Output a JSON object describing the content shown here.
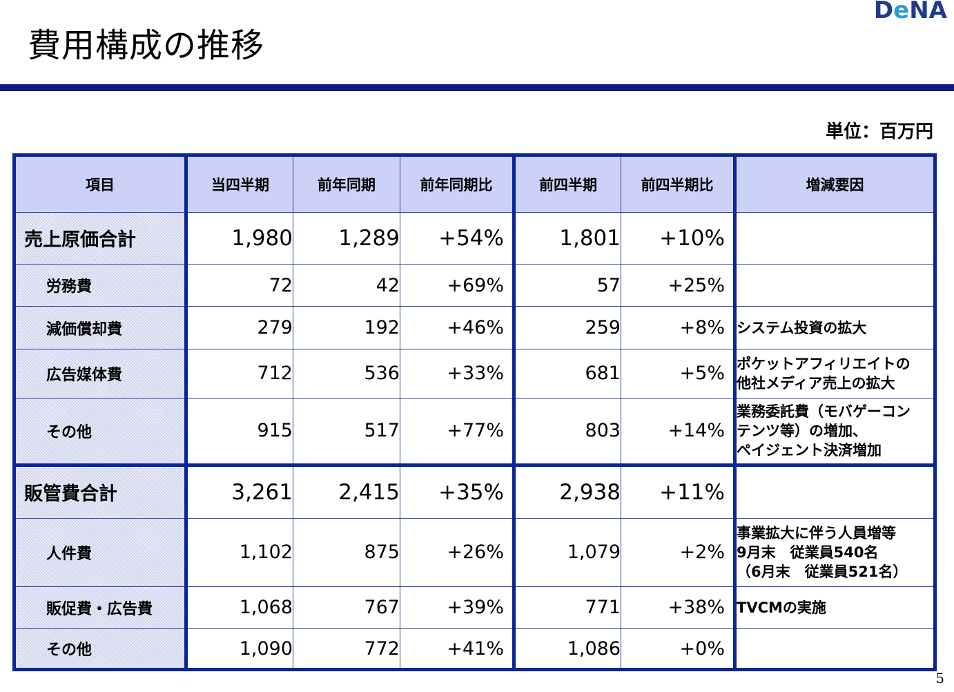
{
  "logo": {
    "part1": "D",
    "part2": "e",
    "part3": "NA"
  },
  "title": "費用構成の推移",
  "unit": "単位：百万円",
  "page_number": "5",
  "columns": [
    "項目",
    "当四半期",
    "前年同期",
    "前年同期比",
    "前四半期",
    "前四半期比",
    "増減要因"
  ],
  "rows": [
    {
      "label": "売上原価合計",
      "current": "1,980",
      "prev_year": "1,289",
      "yoy": "+54%",
      "prev_q": "1,801",
      "qoq": "+10%",
      "reason": [
        "",
        "",
        ""
      ]
    },
    {
      "label": "労務費",
      "current": "72",
      "prev_year": "42",
      "yoy": "+69%",
      "prev_q": "57",
      "qoq": "+25%",
      "reason": [
        "",
        "",
        ""
      ]
    },
    {
      "label": "減価償却費",
      "current": "279",
      "prev_year": "192",
      "yoy": "+46%",
      "prev_q": "259",
      "qoq": "+8%",
      "reason": [
        "システム投資の拡大",
        "",
        ""
      ]
    },
    {
      "label": "広告媒体費",
      "current": "712",
      "prev_year": "536",
      "yoy": "+33%",
      "prev_q": "681",
      "qoq": "+5%",
      "reason": [
        "ポケットアフィリエイトの",
        "他社メディア売上の拡大",
        ""
      ]
    },
    {
      "label": "その他",
      "current": "915",
      "prev_year": "517",
      "yoy": "+77%",
      "prev_q": "803",
      "qoq": "+14%",
      "reason": [
        "業務委託費（モバゲーコン",
        "テンツ等）の増加、",
        "ペイジェント決済増加"
      ]
    },
    {
      "label": "販管費合計",
      "current": "3,261",
      "prev_year": "2,415",
      "yoy": "+35%",
      "prev_q": "2,938",
      "qoq": "+11%",
      "reason": [
        "",
        "",
        ""
      ]
    },
    {
      "label": "人件費",
      "current": "1,102",
      "prev_year": "875",
      "yoy": "+26%",
      "prev_q": "1,079",
      "qoq": "+2%",
      "reason": [
        "事業拡大に伴う人員増等",
        "9月末　従業員540名",
        "（6月末　従業員521名）"
      ]
    },
    {
      "label": "販促費・広告費",
      "current": "1,068",
      "prev_year": "767",
      "yoy": "+39%",
      "prev_q": "771",
      "qoq": "+38%",
      "reason": [
        "TVCMの実施",
        "",
        ""
      ]
    },
    {
      "label": "その他",
      "current": "1,090",
      "prev_year": "772",
      "yoy": "+41%",
      "prev_q": "1,086",
      "qoq": "+0%",
      "reason": [
        "",
        "",
        ""
      ]
    }
  ]
}
